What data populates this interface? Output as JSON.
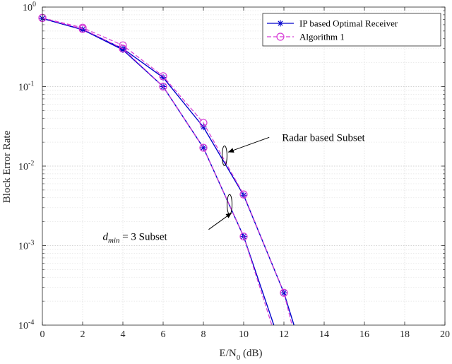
{
  "chart_data": {
    "type": "line",
    "xlabel_main": "E/N",
    "xlabel_sub": "0",
    "xlabel_unit": " (dB)",
    "ylabel": "Block Error Rate",
    "xlim": [
      0,
      20
    ],
    "ylim": [
      0.0001,
      1
    ],
    "yscale": "log",
    "grid": true,
    "legend_position": "top-right",
    "x_ticks": [
      "0",
      "2",
      "4",
      "6",
      "8",
      "10",
      "12",
      "14",
      "16",
      "18",
      "20"
    ],
    "y_ticks": [
      {
        "base": "10",
        "exp": "0"
      },
      {
        "base": "10",
        "exp": "-1"
      },
      {
        "base": "10",
        "exp": "-2"
      },
      {
        "base": "10",
        "exp": "-3"
      },
      {
        "base": "10",
        "exp": "-4"
      }
    ],
    "series": [
      {
        "name": "IP based Optimal Receiver",
        "subset": "radar",
        "color": "#0000cc",
        "x": [
          0,
          2,
          4,
          6,
          8,
          10,
          12,
          12.5
        ],
        "y": [
          0.72,
          0.52,
          0.3,
          0.13,
          0.031,
          0.0043,
          0.000255,
          0.0001
        ]
      },
      {
        "name": "Algorithm 1",
        "subset": "radar",
        "color": "#d63bd6",
        "x": [
          0,
          2,
          4,
          6,
          8,
          10,
          12,
          12.4
        ],
        "y": [
          0.73,
          0.55,
          0.33,
          0.135,
          0.035,
          0.0044,
          0.000255,
          0.0001
        ]
      },
      {
        "name": "IP based Optimal Receiver",
        "subset": "dmin3",
        "color": "#0000cc",
        "x": [
          0,
          2,
          4,
          6,
          8,
          10,
          11.5
        ],
        "y": [
          0.72,
          0.52,
          0.29,
          0.1,
          0.017,
          0.0013,
          0.0001
        ]
      },
      {
        "name": "Algorithm 1",
        "subset": "dmin3",
        "color": "#d63bd6",
        "x": [
          0,
          2,
          4,
          6,
          8,
          10,
          11.4
        ],
        "y": [
          0.73,
          0.53,
          0.3,
          0.1,
          0.017,
          0.0013,
          0.0001
        ]
      }
    ],
    "legend": [
      {
        "label": "IP based Optimal Receiver",
        "color": "#0000cc",
        "marker": "asterisk",
        "dash": "solid"
      },
      {
        "label": "Algorithm 1",
        "color": "#d63bd6",
        "marker": "circle",
        "dash": "dashed"
      }
    ],
    "annotations": [
      {
        "text": "Radar based Subset",
        "ellipse_x": 9.05,
        "ellipse_y": 0.0135,
        "text_x": 11.2,
        "text_y": 0.023
      },
      {
        "text_main": "d",
        "text_sub": "min",
        "text_rest": " = 3 Subset",
        "ellipse_x": 9.3,
        "ellipse_y": 0.0033,
        "text_x": 3.7,
        "text_y": 0.0013
      }
    ]
  }
}
